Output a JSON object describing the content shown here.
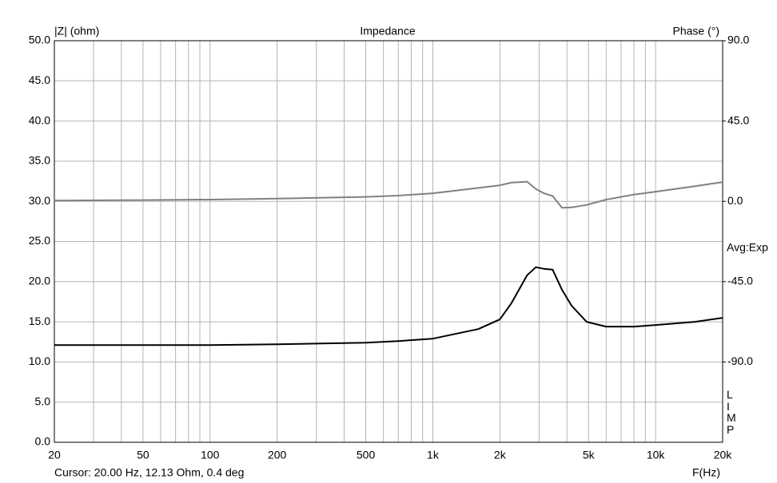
{
  "chart_data": {
    "type": "line",
    "title": "Impedance",
    "y_label": "|Z| (ohm)",
    "y2_label": "Phase (°)",
    "x_label": "F(Hz)",
    "annotations": [
      "Avg:Exp",
      "LIMP",
      "Cursor: 20.00 Hz, 12.13 Ohm, 0.4 deg"
    ],
    "x_scale": "log",
    "grid": true,
    "xlim": [
      20,
      20000
    ],
    "xticks": [
      {
        "value": 20,
        "label": "20"
      },
      50,
      100,
      200,
      500,
      {
        "value": 1000,
        "label": "1k"
      },
      {
        "value": 2000,
        "label": "2k"
      },
      {
        "value": 5000,
        "label": "5k"
      },
      {
        "value": 10000,
        "label": "10k"
      },
      {
        "value": 20000,
        "label": "20k"
      }
    ],
    "x_grid": [
      30,
      40,
      60,
      70,
      80,
      90,
      300,
      400,
      600,
      700,
      800,
      900,
      3000,
      4000,
      6000,
      7000,
      8000,
      9000
    ],
    "ylim": [
      0,
      50
    ],
    "yticks": [
      {
        "value": 0,
        "label": "0.0"
      },
      {
        "value": 5,
        "label": "5.0"
      },
      {
        "value": 10,
        "label": "10.0"
      },
      {
        "value": 15,
        "label": "15.0"
      },
      {
        "value": 20,
        "label": "20.0"
      },
      {
        "value": 25,
        "label": "25.0"
      },
      {
        "value": 30,
        "label": "30.0"
      },
      {
        "value": 35,
        "label": "35.0"
      },
      {
        "value": 40,
        "label": "40.0"
      },
      {
        "value": 45,
        "label": "45.0"
      },
      {
        "value": 50,
        "label": "50.0"
      }
    ],
    "y2lim": [
      -135,
      90
    ],
    "y2ticks": [
      {
        "value": -90,
        "label": "-90.0"
      },
      {
        "value": -45,
        "label": "-45.0"
      },
      {
        "value": 0,
        "label": "0.0"
      },
      {
        "value": 45,
        "label": "45.0"
      },
      {
        "value": 90,
        "label": "90.0"
      }
    ],
    "x": [
      20,
      50,
      100,
      200,
      500,
      700,
      1000,
      1600,
      2000,
      2250,
      2650,
      2900,
      3150,
      3450,
      3800,
      4200,
      4900,
      6000,
      8000,
      10000,
      15000,
      20000
    ],
    "series": [
      {
        "color": "#000000",
        "values": [
          12.1,
          12.1,
          12.1,
          12.2,
          12.4,
          12.6,
          12.9,
          14.1,
          15.3,
          17.3,
          20.8,
          21.8,
          21.6,
          21.5,
          19,
          17,
          15,
          14.4,
          14.4,
          14.6,
          15,
          15.5
        ]
      },
      {
        "color": "#808080",
        "axis": "y2",
        "values": [
          0.4,
          0.7,
          1,
          1.5,
          2.5,
          3.2,
          4.5,
          7.5,
          9,
          10.5,
          11,
          7,
          4.5,
          3,
          -3.6,
          -3.4,
          -2,
          1,
          3.8,
          5.4,
          8.5,
          10.8
        ]
      }
    ]
  }
}
